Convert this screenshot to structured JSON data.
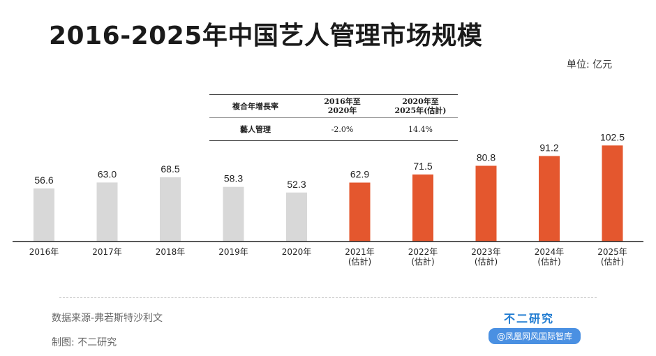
{
  "title": "2016-2025年中国艺人管理市场规模",
  "unit_label": "单位: 亿元",
  "cagr_table": {
    "header": [
      "複合年增長率",
      "2016年至\n2020年",
      "2020年至\n2025年(估計)"
    ],
    "row": [
      "藝人管理",
      "-2.0%",
      "14.4%"
    ]
  },
  "chart_data": {
    "type": "bar",
    "categories": [
      "2016年",
      "2017年",
      "2018年",
      "2019年",
      "2020年",
      "2021年",
      "2022年",
      "2023年",
      "2024年",
      "2025年"
    ],
    "category_sublabels": [
      "",
      "",
      "",
      "",
      "",
      "(估計)",
      "(估計)",
      "(估計)",
      "(估計)",
      "(估計)"
    ],
    "values": [
      56.6,
      63.0,
      68.5,
      58.3,
      52.3,
      62.9,
      71.5,
      80.8,
      91.2,
      102.5
    ],
    "value_labels": [
      "56.6",
      "63.0",
      "68.5",
      "58.3",
      "52.3",
      "62.9",
      "71.5",
      "80.8",
      "91.2",
      "102.5"
    ],
    "ylim": [
      0,
      105
    ],
    "colors": {
      "actual": "#d8d8d8",
      "estimate": "#e4572e"
    },
    "estimate_start_index": 5,
    "grid": false,
    "legend": "none"
  },
  "footer": {
    "source": "数据来源-弗若斯特沙利文",
    "maker": "制图: 不二研究",
    "brand": "不二研究",
    "brand_sub": "@凤凰网风国际智库"
  }
}
